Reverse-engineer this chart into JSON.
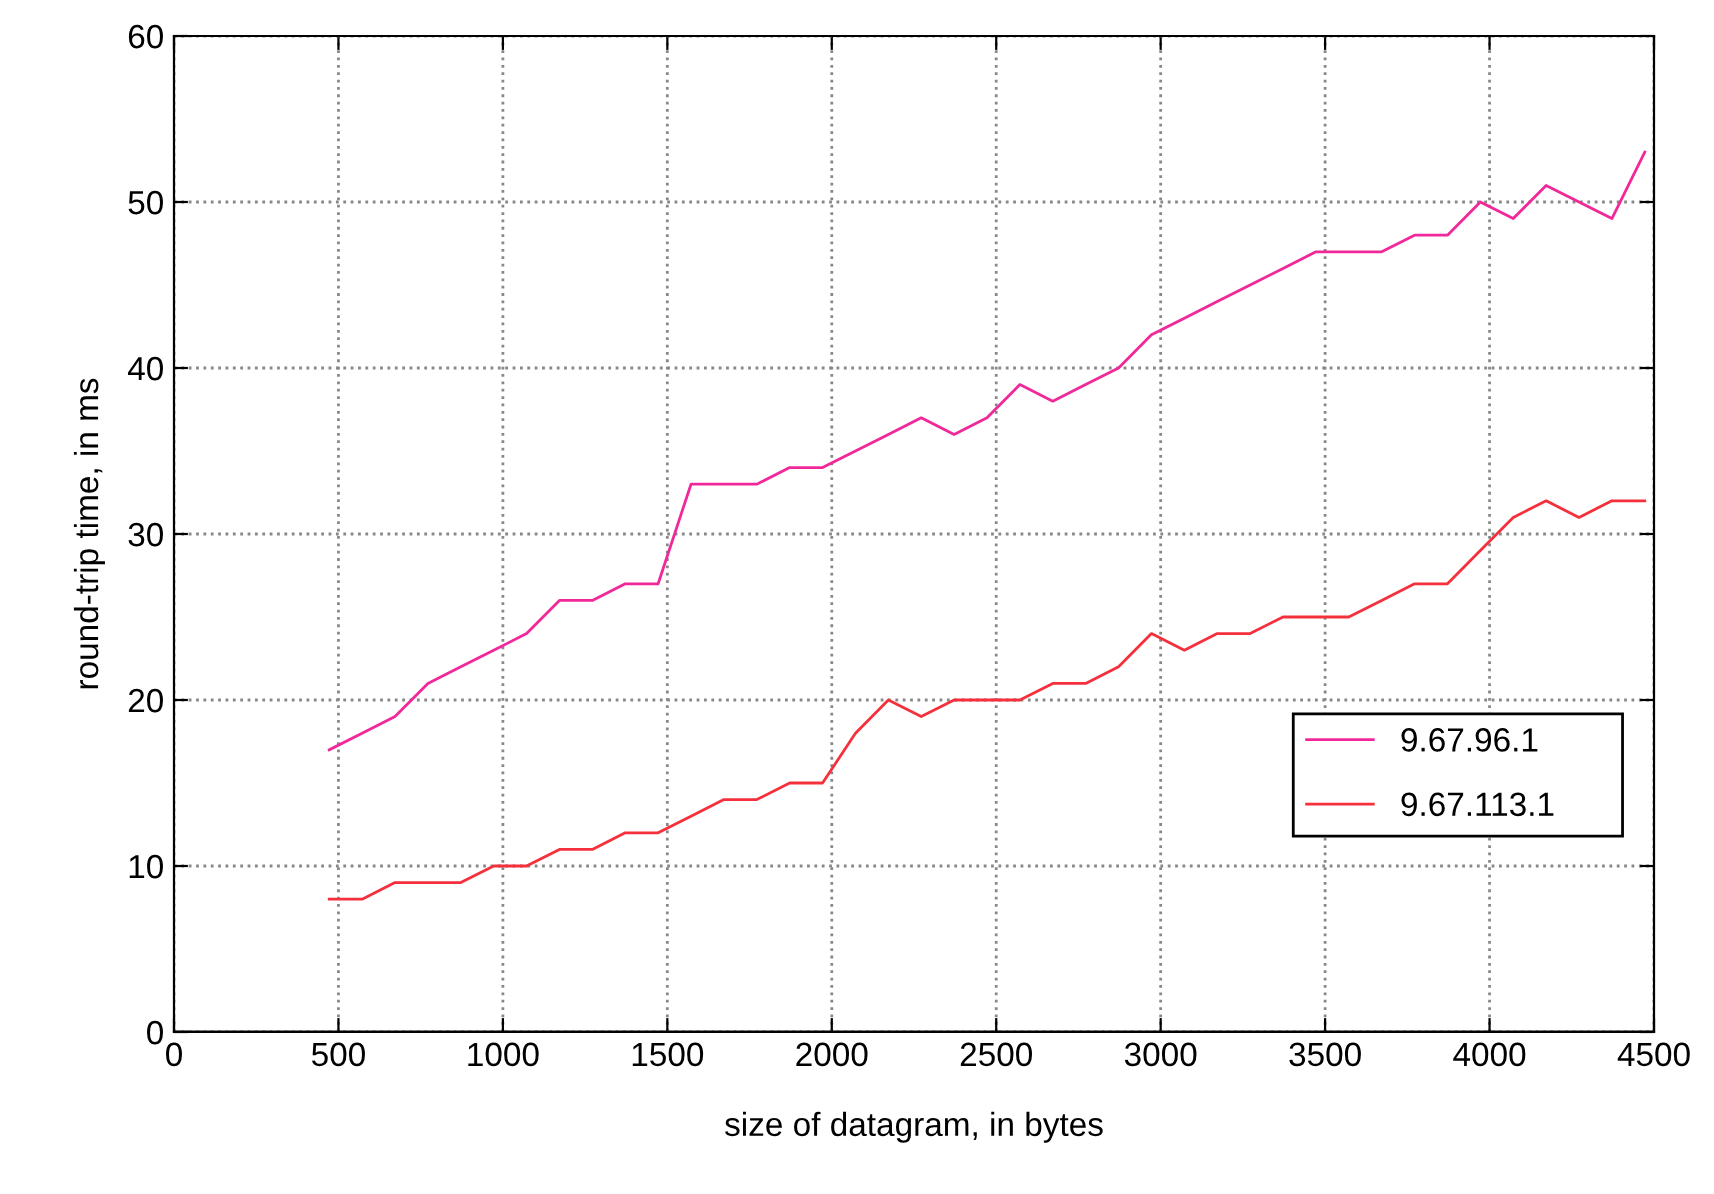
{
  "chart_data": {
    "type": "line",
    "xlabel": "size of datagram, in bytes",
    "ylabel": "round-trip time, in ms",
    "x": [
      472,
      572,
      672,
      772,
      872,
      972,
      1072,
      1172,
      1272,
      1372,
      1472,
      1572,
      1672,
      1772,
      1872,
      1972,
      2072,
      2172,
      2272,
      2372,
      2472,
      2572,
      2672,
      2772,
      2872,
      2972,
      3072,
      3172,
      3272,
      3372,
      3472,
      3572,
      3672,
      3772,
      3872,
      3972,
      4072,
      4172,
      4272,
      4372,
      4472
    ],
    "series": [
      {
        "name": "9.67.96.1",
        "color": "#f0289a",
        "values": [
          17,
          18,
          19,
          21,
          22,
          23,
          24,
          26,
          26,
          27,
          27,
          33,
          33,
          33,
          34,
          34,
          35,
          36,
          37,
          36,
          37,
          39,
          38,
          39,
          40,
          42,
          43,
          44,
          45,
          46,
          47,
          47,
          47,
          48,
          48,
          50,
          49,
          51,
          50,
          49,
          53
        ]
      },
      {
        "name": "9.67.113.1",
        "color": "#f5303c",
        "values": [
          8,
          8,
          9,
          9,
          9,
          10,
          10,
          11,
          11,
          12,
          12,
          13,
          14,
          14,
          15,
          15,
          18,
          20,
          19,
          20,
          20,
          20,
          21,
          21,
          22,
          24,
          23,
          24,
          24,
          25,
          25,
          25,
          26,
          27,
          27,
          29,
          31,
          32,
          31,
          32,
          32
        ]
      }
    ],
    "xlim": [
      0,
      4500
    ],
    "xticks": [
      0,
      500,
      1000,
      1500,
      2000,
      2500,
      3000,
      3500,
      4000,
      4500
    ],
    "ylim": [
      0,
      60
    ],
    "yticks": [
      0,
      10,
      20,
      30,
      40,
      50,
      60
    ],
    "grid": true,
    "legend": "bottom right",
    "line_style": "solid",
    "marker": "none"
  }
}
